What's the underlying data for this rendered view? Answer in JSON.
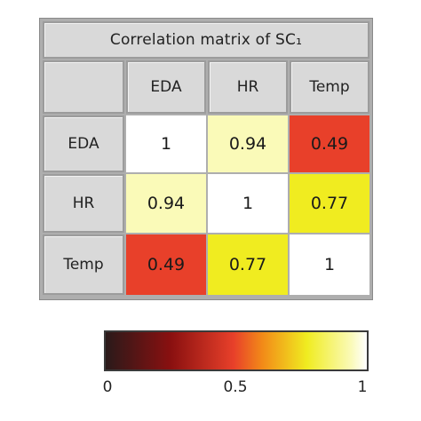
{
  "chart_data": {
    "type": "heatmap",
    "title": "Correlation matrix of SC₁",
    "row_labels": [
      "EDA",
      "HR",
      "Temp"
    ],
    "col_labels": [
      "EDA",
      "HR",
      "Temp"
    ],
    "values": [
      [
        1,
        0.94,
        0.49
      ],
      [
        0.94,
        1,
        0.77
      ],
      [
        0.49,
        0.77,
        1
      ]
    ],
    "value_labels": [
      [
        "1",
        "0.94",
        "0.49"
      ],
      [
        "0.94",
        "1",
        "0.77"
      ],
      [
        "0.49",
        "0.77",
        "1"
      ]
    ],
    "colormap": "hot",
    "colorbar": {
      "range": [
        0,
        1
      ],
      "ticks": [
        "0",
        "0.5",
        "1"
      ],
      "placement": "bottom"
    },
    "colors": {
      "0": "#2a1a1a",
      "0.25": "#8a1010",
      "0.49": "#e8402a",
      "0.6": "#f28a18",
      "0.77": "#f0ec20",
      "0.94": "#fafab8",
      "1": "#ffffff"
    }
  }
}
